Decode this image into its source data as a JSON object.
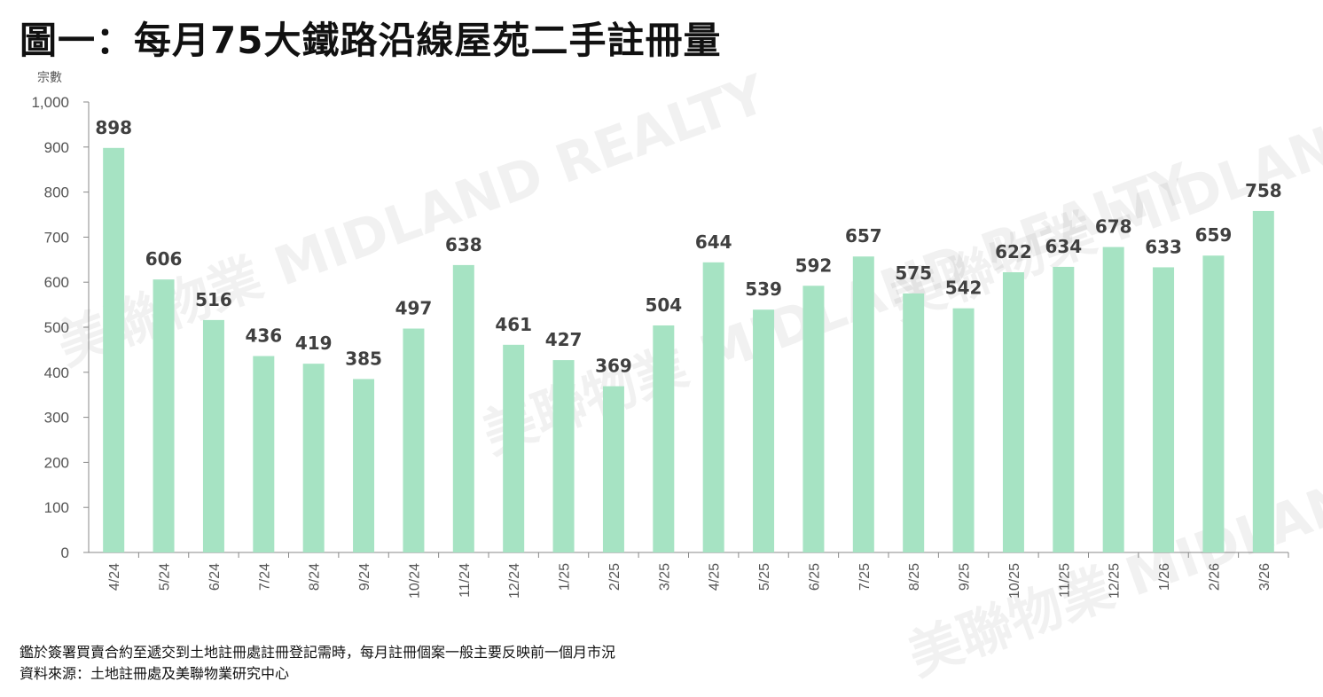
{
  "chart_data": {
    "type": "bar",
    "title": "圖一：每月75大鐵路沿線屋苑二手註冊量",
    "ylabel": "宗數",
    "xlabel": "",
    "ylim": [
      0,
      1000
    ],
    "yticks": [
      0,
      100,
      200,
      300,
      400,
      500,
      600,
      700,
      800,
      900,
      1000
    ],
    "ytick_labels": [
      "0",
      "100",
      "200",
      "300",
      "400",
      "500",
      "600",
      "700",
      "800",
      "900",
      "1,000"
    ],
    "grid": false,
    "categories": [
      "4/24",
      "5/24",
      "6/24",
      "7/24",
      "8/24",
      "9/24",
      "10/24",
      "11/24",
      "12/24",
      "1/25",
      "2/25",
      "3/25",
      "4/25",
      "5/25",
      "6/25",
      "7/25",
      "8/25",
      "9/25",
      "10/25",
      "11/25",
      "12/25",
      "1/26",
      "2/26",
      "3/26"
    ],
    "values": [
      898,
      606,
      516,
      436,
      419,
      385,
      497,
      638,
      461,
      427,
      369,
      504,
      644,
      539,
      592,
      657,
      575,
      542,
      622,
      634,
      678,
      633,
      659,
      758
    ],
    "bar_color": "#a6e3c3"
  },
  "notes": [
    "鑑於簽署買賣合約至遞交到土地註冊處註冊登記需時，每月註冊個案一般主要反映前一個月市況",
    "資料來源：土地註冊處及美聯物業研究中心"
  ],
  "watermark": "美聯物業 MIDLAND REALTY"
}
